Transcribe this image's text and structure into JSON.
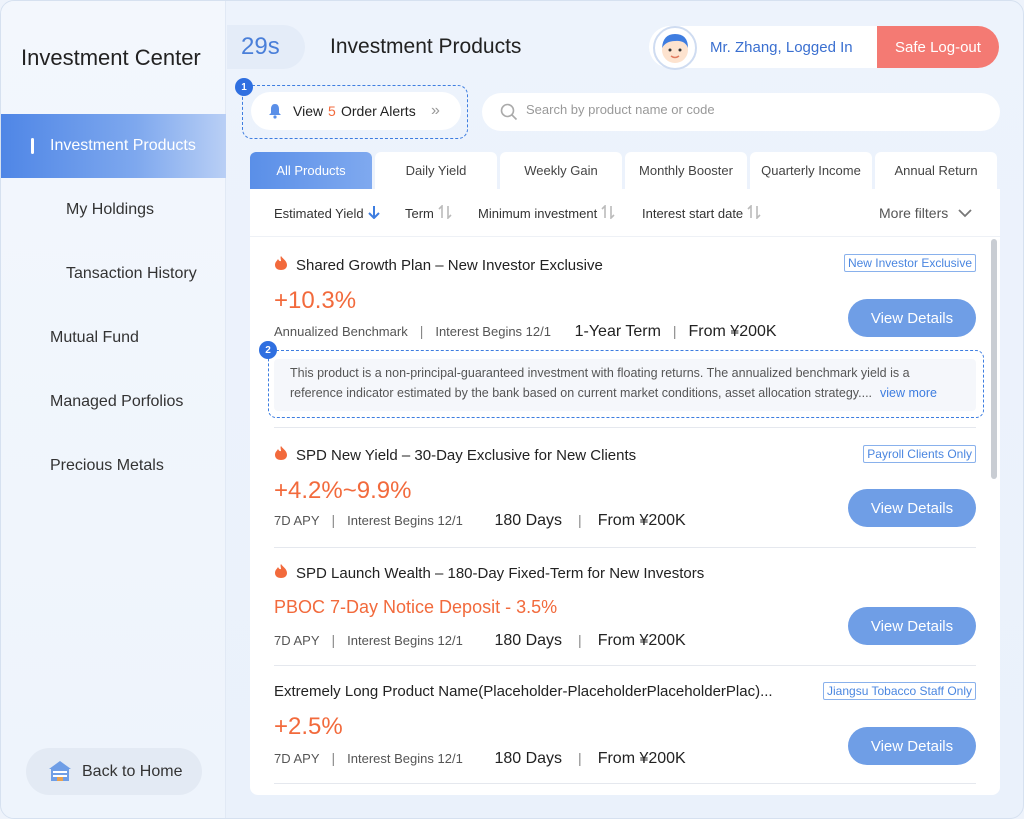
{
  "sidebar": {
    "title": "Investment Center",
    "items": [
      {
        "label": "Investment Products"
      },
      {
        "label": "My Holdings"
      },
      {
        "label": "Tansaction History"
      },
      {
        "label": "Mutual Fund"
      },
      {
        "label": "Managed Porfolios"
      },
      {
        "label": "Precious Metals"
      }
    ],
    "home_label": "Back to Home"
  },
  "header": {
    "timer": "29s",
    "title": "Investment Products",
    "user": "Mr. Zhang, Logged In",
    "logout": "Safe Log-out"
  },
  "alerts": {
    "prefix": "View",
    "count": "5",
    "suffix": "Order Alerts",
    "badge": "1"
  },
  "search": {
    "placeholder": "Search by product name or code"
  },
  "tabs": [
    "All Products",
    "Daily Yield",
    "Weekly Gain",
    "Monthly Booster",
    "Quarterly Income",
    "Annual Return"
  ],
  "filters": {
    "items": [
      "Estimated Yield",
      "Term",
      "Minimum investment",
      "Interest start date"
    ],
    "more": "More filters"
  },
  "products": [
    {
      "title": "Shared Growth Plan – New Investor Exclusive",
      "tag": "New Investor Exclusive",
      "rate": "+10.3%",
      "rate_label": "Annualized Benchmark",
      "interest": "Interest Begins 12/1",
      "term": "1-Year Term",
      "min": "From ¥200K",
      "button": "View Details"
    },
    {
      "title": "SPD New Yield – 30-Day Exclusive for New Clients",
      "tag": "Payroll Clients Only",
      "rate": "+4.2%~9.9%",
      "rate_label": "7D APY",
      "interest": "Interest Begins 12/1",
      "term": "180 Days",
      "min": "From ¥200K",
      "button": "View Details"
    },
    {
      "title": "SPD Launch Wealth – 180-Day Fixed-Term for New Investors",
      "tag": "",
      "rate": "PBOC 7-Day Notice Deposit - 3.5%",
      "rate_label": "7D APY",
      "interest": "Interest Begins 12/1",
      "term": "180 Days",
      "min": "From ¥200K",
      "button": "View Details"
    },
    {
      "title": "Extremely Long Product Name(Placeholder-PlaceholderPlaceholderPlac)...",
      "tag": "Jiangsu Tobacco Staff Only",
      "rate": "+2.5%",
      "rate_label": "7D APY",
      "interest": "Interest Begins 12/1",
      "term": "180 Days",
      "min": "From ¥200K",
      "button": "View Details"
    }
  ],
  "disclaimer": {
    "badge": "2",
    "text": "This product is a non-principal-guaranteed investment with floating returns. The annualized benchmark yield is a reference indicator estimated by the bank based on current market conditions, asset allocation strategy....",
    "link": "view more"
  },
  "colors": {
    "accent": "#4f86e6",
    "rate": "#f26a3c",
    "logout": "#f47a73",
    "button": "#6f9ee6"
  }
}
